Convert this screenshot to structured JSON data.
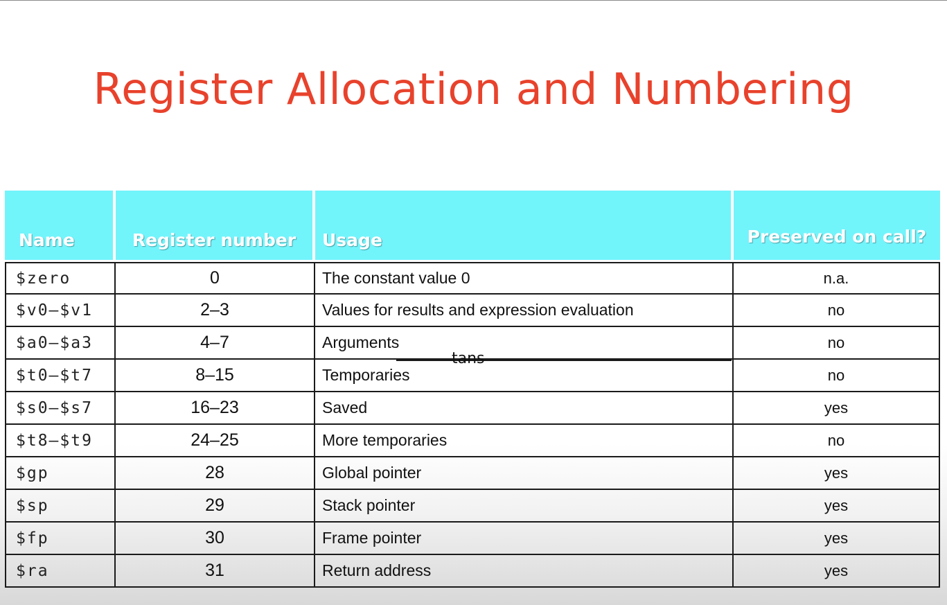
{
  "title": "Register Allocation and Numbering",
  "table": {
    "headers": {
      "name": "Name",
      "register_number": "Register number",
      "usage": "Usage",
      "preserved": "Preserved on call?"
    },
    "rows": [
      {
        "name": "$zero",
        "number": "0",
        "usage": "The constant value 0",
        "preserved": "n.a."
      },
      {
        "name": "$v0–$v1",
        "number": "2–3",
        "usage": "Values for results and expression evaluation",
        "preserved": "no"
      },
      {
        "name": "$a0–$a3",
        "number": "4–7",
        "usage": "Arguments",
        "preserved": "no"
      },
      {
        "name": "$t0–$t7",
        "number": "8–15",
        "usage": "Temporaries",
        "preserved": "no"
      },
      {
        "name": "$s0–$s7",
        "number": "16–23",
        "usage": "Saved",
        "preserved": "yes"
      },
      {
        "name": "$t8–$t9",
        "number": "24–25",
        "usage": "More temporaries",
        "preserved": "no"
      },
      {
        "name": "$gp",
        "number": "28",
        "usage": "Global pointer",
        "preserved": "yes"
      },
      {
        "name": "$sp",
        "number": "29",
        "usage": "Stack pointer",
        "preserved": "yes"
      },
      {
        "name": "$fp",
        "number": "30",
        "usage": "Frame pointer",
        "preserved": "yes"
      },
      {
        "name": "$ra",
        "number": "31",
        "usage": "Return address",
        "preserved": "yes"
      }
    ]
  },
  "annotation": "tans",
  "colors": {
    "title": "#e8422c",
    "header_bg": "#72f4fb",
    "header_text": "#ffffff",
    "grid": "#1a1a1a"
  }
}
